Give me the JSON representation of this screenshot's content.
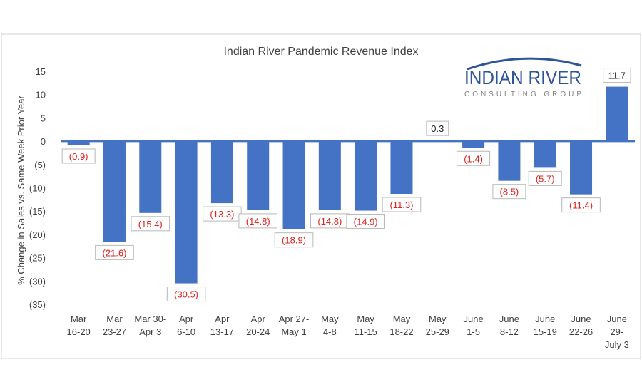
{
  "chart_data": {
    "type": "bar",
    "title": "Indian River Pandemic Revenue Index",
    "xlabel": "",
    "ylabel": "% Change in Sales vs. Same Week Prior Year",
    "ylim": [
      -35,
      15
    ],
    "yticks": [
      15,
      10,
      5,
      0,
      -5,
      -10,
      -15,
      -20,
      -25,
      -30,
      -35
    ],
    "ytick_labels": [
      "15",
      "10",
      "5",
      "0",
      "(5)",
      "(10)",
      "(15)",
      "(20)",
      "(25)",
      "(30)",
      "(35)"
    ],
    "grid": false,
    "legend": "none",
    "colors": {
      "bar": "#4472C4",
      "positive_label": "#222222",
      "negative_label": "#E0201C",
      "zero_line": "#4472C4"
    },
    "categories": [
      [
        "Mar",
        "16-20"
      ],
      [
        "Mar",
        "23-27"
      ],
      [
        "Mar 30-",
        "Apr 3"
      ],
      [
        "Apr",
        "6-10"
      ],
      [
        "Apr",
        "13-17"
      ],
      [
        "Apr",
        "20-24"
      ],
      [
        "Apr 27-",
        "May 1"
      ],
      [
        "May",
        "4-8"
      ],
      [
        "May",
        "11-15"
      ],
      [
        "May",
        "18-22"
      ],
      [
        "May",
        "25-29"
      ],
      [
        "June",
        "1-5"
      ],
      [
        "June",
        "8-12"
      ],
      [
        "June",
        "15-19"
      ],
      [
        "June",
        "22-26"
      ],
      [
        "June",
        "29-",
        "July 3"
      ]
    ],
    "values": [
      -0.9,
      -21.6,
      -15.4,
      -30.5,
      -13.3,
      -14.8,
      -18.9,
      -14.8,
      -14.9,
      -11.3,
      0.3,
      -1.4,
      -8.5,
      -5.7,
      -11.4,
      11.7
    ],
    "data_labels": [
      "(0.9)",
      "(21.6)",
      "(15.4)",
      "(30.5)",
      "(13.3)",
      "(14.8)",
      "(18.9)",
      "(14.8)",
      "(14.9)",
      "(11.3)",
      "0.3",
      "(1.4)",
      "(8.5)",
      "(5.7)",
      "(11.4)",
      "11.7"
    ]
  },
  "logo": {
    "name": "INDIAN RIVER",
    "tagline": "CONSULTING GROUP",
    "color": "#2E5597"
  }
}
